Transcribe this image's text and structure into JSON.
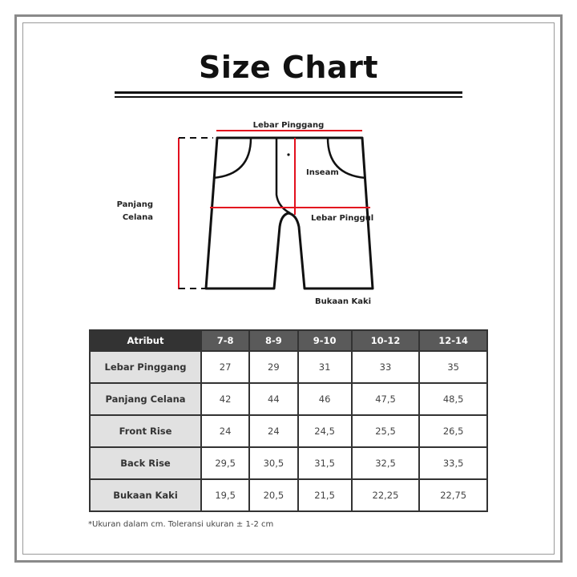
{
  "title": "Size Chart",
  "diagram": {
    "labels": {
      "waist": "Lebar Pinggang",
      "inseam": "Inseam",
      "hip": "Lebar Pinggul",
      "leg_opening": "Bukaan Kaki",
      "length_line1": "Panjang",
      "length_line2": "Celana"
    },
    "colors": {
      "measure": "#e3101e",
      "outline": "#111111"
    }
  },
  "table": {
    "header": [
      "Atribut",
      "7-8",
      "8-9",
      "9-10",
      "10-12",
      "12-14"
    ],
    "rows": [
      {
        "attr": "Lebar Pinggang",
        "values": [
          "27",
          "29",
          "31",
          "33",
          "35"
        ]
      },
      {
        "attr": "Panjang Celana",
        "values": [
          "42",
          "44",
          "46",
          "47,5",
          "48,5"
        ]
      },
      {
        "attr": "Front Rise",
        "values": [
          "24",
          "24",
          "24,5",
          "25,5",
          "26,5"
        ]
      },
      {
        "attr": "Back Rise",
        "values": [
          "29,5",
          "30,5",
          "31,5",
          "32,5",
          "33,5"
        ]
      },
      {
        "attr": "Bukaan Kaki",
        "values": [
          "19,5",
          "20,5",
          "21,5",
          "22,25",
          "22,75"
        ]
      }
    ]
  },
  "note": "*Ukuran dalam cm. Toleransi ukuran ± 1-2 cm"
}
